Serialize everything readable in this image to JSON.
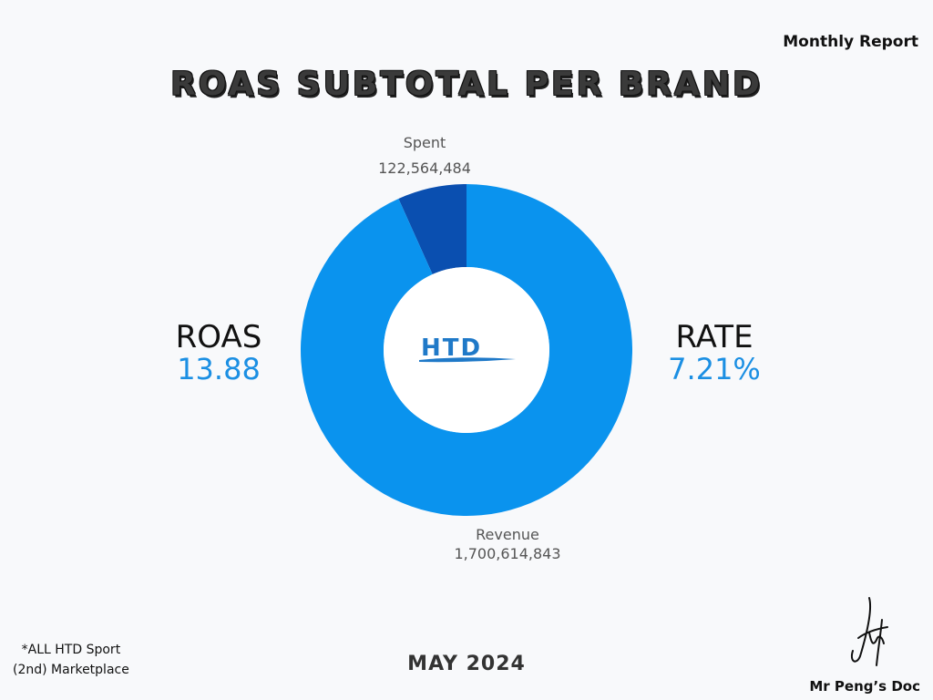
{
  "header": {
    "report_label": "Monthly Report",
    "title": "ROAS SUBTOTAL PER BRAND"
  },
  "chart_data": {
    "type": "pie",
    "donut": true,
    "slices": [
      {
        "label": "Spent",
        "value": 122564484,
        "display": "122,564,484",
        "color": "#0a4fb0"
      },
      {
        "label": "Revenue",
        "value": 1700614843,
        "display": "1,700,614,843",
        "color": "#0a93ee"
      }
    ],
    "center_logo": "HTD"
  },
  "metrics": {
    "roas": {
      "name": "ROAS",
      "value": "13.88"
    },
    "rate": {
      "name": "RATE",
      "value": "7.21%"
    }
  },
  "footer": {
    "footnote_line1": "*ALL HTD Sport",
    "footnote_line2": "(2nd) Marketplace",
    "date": "MAY 2024",
    "credit": "Mr Peng’s Doc"
  },
  "colors": {
    "accent": "#1b8fe3",
    "background": "#f8f9fb"
  }
}
